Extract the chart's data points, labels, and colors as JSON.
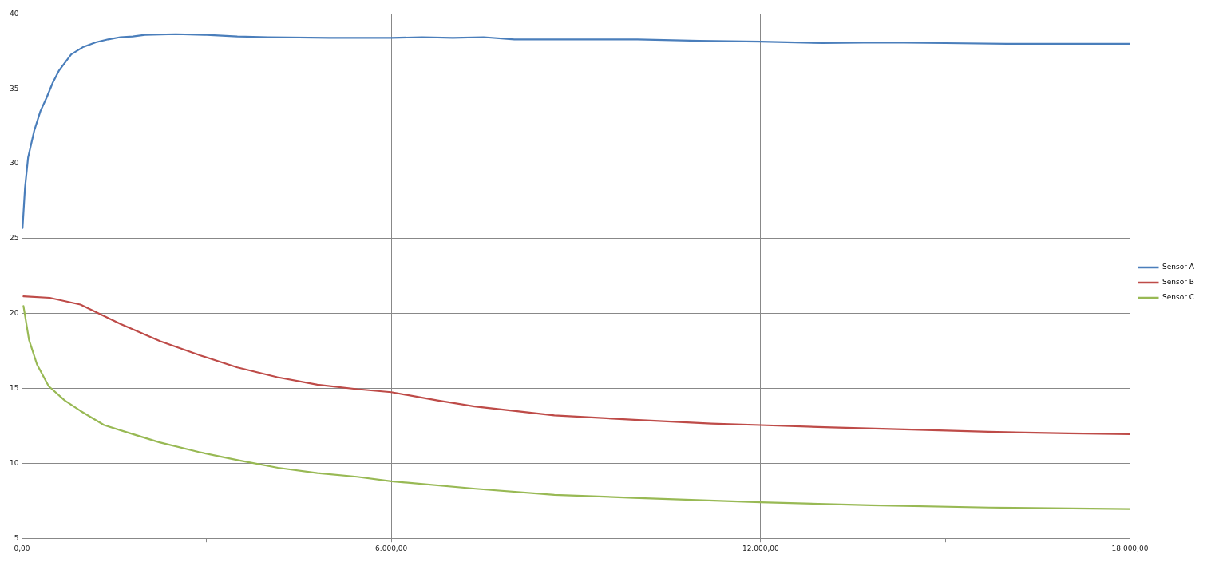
{
  "chart_data": {
    "type": "line",
    "xlim": [
      0,
      18000
    ],
    "xticks": [
      {
        "value": 0,
        "label": "0,00"
      },
      {
        "value": 3000,
        "label": null
      },
      {
        "value": 6000,
        "label": "6.000,00"
      },
      {
        "value": 9000,
        "label": null
      },
      {
        "value": 12000,
        "label": "12.000,00"
      },
      {
        "value": 15000,
        "label": null
      },
      {
        "value": 18000,
        "label": "18.000,00"
      }
    ],
    "ylim": [
      5,
      40
    ],
    "yticks": [
      5,
      10,
      15,
      20,
      25,
      30,
      35,
      40
    ],
    "grid": true,
    "legend": "right",
    "marker": "none",
    "line_style": "solid",
    "series": [
      {
        "name": "Sensor A",
        "color": "#4a7ebb",
        "x": [
          10,
          50,
          100,
          200,
          300,
          400,
          500,
          600,
          800,
          1000,
          1200,
          1400,
          1600,
          1800,
          2000,
          2500,
          3000,
          3500,
          4000,
          5000,
          6000,
          6500,
          7000,
          7500,
          8000,
          9000,
          10000,
          11000,
          12000,
          13000,
          14000,
          15000,
          16000,
          17000,
          18000
        ],
        "values": [
          25.7,
          28.4,
          30.4,
          32.2,
          33.5,
          34.4,
          35.4,
          36.2,
          37.3,
          37.8,
          38.1,
          38.3,
          38.45,
          38.5,
          38.6,
          38.65,
          38.6,
          38.5,
          38.45,
          38.4,
          38.4,
          38.45,
          38.4,
          38.45,
          38.3,
          38.3,
          38.3,
          38.2,
          38.15,
          38.05,
          38.1,
          38.05,
          38.0,
          38.0,
          38.0
        ]
      },
      {
        "name": "Sensor B",
        "color": "#be4b48",
        "x": [
          25,
          450,
          950,
          1600,
          2250,
          2900,
          3500,
          4150,
          4800,
          5450,
          6000,
          6750,
          7350,
          8650,
          9950,
          11200,
          12000,
          13150,
          14450,
          15700,
          17000,
          18000
        ],
        "values": [
          21.15,
          21.05,
          20.6,
          19.3,
          18.15,
          17.2,
          16.4,
          15.75,
          15.25,
          14.95,
          14.75,
          14.2,
          13.8,
          13.2,
          12.9,
          12.65,
          12.55,
          12.4,
          12.25,
          12.1,
          12.0,
          11.95
        ]
      },
      {
        "name": "Sensor C",
        "color": "#98b954",
        "x": [
          25,
          115,
          245,
          435,
          695,
          950,
          1335,
          1720,
          2235,
          2875,
          3520,
          4160,
          4800,
          5445,
          6000,
          7370,
          8650,
          9935,
          12000,
          13790,
          15710,
          18000
        ],
        "values": [
          20.5,
          18.25,
          16.6,
          15.15,
          14.2,
          13.5,
          12.55,
          12.05,
          11.4,
          10.75,
          10.2,
          9.7,
          9.35,
          9.1,
          8.8,
          8.3,
          7.9,
          7.7,
          7.4,
          7.2,
          7.05,
          6.95
        ]
      }
    ]
  }
}
